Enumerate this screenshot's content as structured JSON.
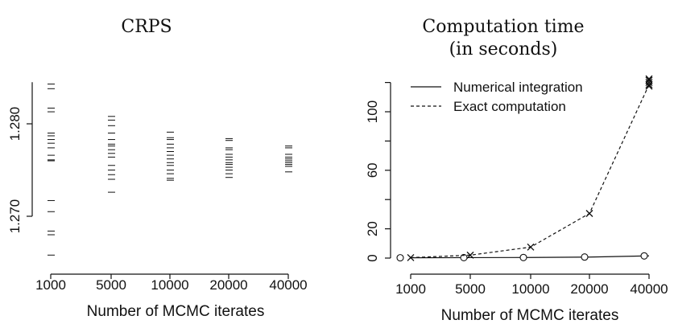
{
  "chart_data": [
    {
      "type": "scatter",
      "title": "CRPS",
      "xlabel": "Number of MCMC iterates",
      "ylabel": "",
      "categories": [
        "1000",
        "5000",
        "10000",
        "20000",
        "40000"
      ],
      "y_ticks": [
        1.27,
        1.28
      ],
      "y_tick_labels": [
        "1.270",
        "1.280"
      ],
      "ylim": [
        1.265,
        1.285
      ],
      "grid": false,
      "series": [
        {
          "values": [
            [
              1.2843,
              1.2838,
              1.2817,
              1.2813,
              1.279,
              1.2787,
              1.2783,
              1.2779,
              1.2774,
              1.2766,
              1.2761,
              1.276,
              1.2717,
              1.2705,
              1.2684,
              1.268,
              1.2658
            ],
            [
              1.2808,
              1.2804,
              1.2798,
              1.279,
              1.2783,
              1.2778,
              1.2776,
              1.2772,
              1.2768,
              1.2764,
              1.2755,
              1.275,
              1.2745,
              1.274,
              1.2726
            ],
            [
              1.2791,
              1.2785,
              1.2783,
              1.2778,
              1.2774,
              1.277,
              1.2766,
              1.2762,
              1.2758,
              1.2755,
              1.275,
              1.2746,
              1.2741,
              1.2739
            ],
            [
              1.2784,
              1.2782,
              1.2774,
              1.2772,
              1.2767,
              1.2764,
              1.2761,
              1.2758,
              1.2756,
              1.2753,
              1.275,
              1.2746,
              1.2742
            ],
            [
              1.2776,
              1.2774,
              1.2767,
              1.2764,
              1.2762,
              1.276,
              1.2758,
              1.2756,
              1.2754,
              1.2748
            ]
          ]
        }
      ]
    },
    {
      "type": "line",
      "title": "Computation time",
      "subtitle": "(in seconds)",
      "xlabel": "Number of MCMC iterates",
      "ylabel": "",
      "categories": [
        "1000",
        "5000",
        "10000",
        "20000",
        "40000"
      ],
      "y_ticks": [
        0,
        20,
        60,
        100
      ],
      "ylim": [
        0,
        120
      ],
      "grid": false,
      "legend": "top-left",
      "series": [
        {
          "name": "Numerical integration",
          "line_style": "solid",
          "marker": "circle",
          "x": [
            1000,
            5000,
            10000,
            20000,
            40000
          ],
          "values": [
            0.2,
            0.3,
            0.4,
            0.7,
            1.5
          ]
        },
        {
          "name": "Exact computation",
          "line_style": "dashed",
          "marker": "x",
          "x": [
            1000,
            5000,
            10000,
            20000,
            40000
          ],
          "values": [
            0.3,
            2.0,
            7.5,
            30.5,
            118.5
          ],
          "extra_points_at_40000": [
            117.5,
            120.0,
            121.5,
            122.5
          ]
        }
      ]
    }
  ],
  "colors": {
    "ink": "#111111"
  }
}
